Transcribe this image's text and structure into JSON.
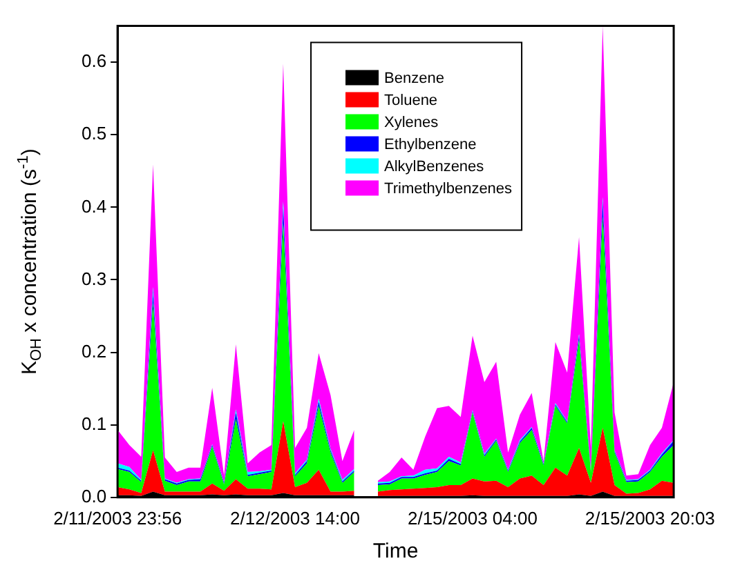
{
  "chart_data": {
    "type": "area",
    "stacked": true,
    "xlabel": "Time",
    "ylabel": "K$_{OH}$ x concentration (s$^{-1}$)",
    "categories": [
      "2/11/2003 23:56",
      null,
      null,
      null,
      null,
      null,
      null,
      null,
      null,
      null,
      null,
      null,
      null,
      null,
      null,
      "2/12/2003 14:00",
      null,
      null,
      null,
      null,
      null,
      null,
      null,
      null,
      null,
      null,
      null,
      null,
      null,
      null,
      "2/15/2003 04:00",
      null,
      null,
      null,
      null,
      null,
      null,
      null,
      null,
      null,
      null,
      null,
      null,
      null,
      null,
      "2/15/2003 20:03",
      null,
      null
    ],
    "ylim": [
      0,
      0.65
    ],
    "yticks": [
      {
        "value": 0,
        "label": "0.0"
      },
      0.1,
      0.2,
      0.3,
      0.4,
      0.5,
      0.6
    ],
    "grid": false,
    "legend": "top right",
    "series": [
      {
        "name": "Benzene",
        "color": "#000000",
        "values": [
          0.003,
          0.003,
          0.002,
          0.008,
          0.003,
          0.003,
          0.003,
          0.003,
          0.004,
          0.003,
          0.004,
          0.003,
          0.003,
          0.003,
          0.006,
          0.003,
          0.003,
          0.003,
          0.003,
          0.003,
          0.003,
          null,
          0.002,
          0.002,
          0.002,
          0.002,
          0.002,
          0.002,
          0.002,
          0.002,
          0.003,
          0.002,
          0.002,
          0.002,
          0.002,
          0.002,
          0.002,
          0.002,
          0.002,
          0.004,
          0.002,
          0.008,
          0.002,
          0.002,
          0.002,
          0.002,
          0.002,
          0.002
        ]
      },
      {
        "name": "Toluene",
        "color": "#ff0000",
        "values": [
          0.011,
          0.008,
          0.004,
          0.057,
          0.005,
          0.005,
          0.005,
          0.005,
          0.015,
          0.006,
          0.021,
          0.009,
          0.009,
          0.008,
          0.099,
          0.011,
          0.017,
          0.035,
          0.005,
          0.005,
          0.006,
          null,
          0.006,
          0.008,
          0.009,
          0.01,
          0.011,
          0.012,
          0.015,
          0.015,
          0.023,
          0.02,
          0.021,
          0.012,
          0.024,
          0.028,
          0.015,
          0.039,
          0.028,
          0.064,
          0.018,
          0.088,
          0.015,
          0.003,
          0.004,
          0.009,
          0.021,
          0.018
        ]
      },
      {
        "name": "Xylenes",
        "color": "#00ff00",
        "values": [
          0.025,
          0.024,
          0.015,
          0.203,
          0.015,
          0.009,
          0.014,
          0.014,
          0.051,
          0.009,
          0.083,
          0.017,
          0.02,
          0.024,
          0.273,
          0.015,
          0.027,
          0.088,
          0.054,
          0.012,
          0.026,
          null,
          0.009,
          0.008,
          0.015,
          0.014,
          0.018,
          0.021,
          0.033,
          0.027,
          0.091,
          0.034,
          0.055,
          0.021,
          0.049,
          0.063,
          0.027,
          0.085,
          0.072,
          0.149,
          0.015,
          0.291,
          0.045,
          0.016,
          0.016,
          0.024,
          0.033,
          0.052
        ]
      },
      {
        "name": "Ethylbenzene",
        "color": "#0000ff",
        "values": [
          0.002,
          0.002,
          0.002,
          0.014,
          0.002,
          0.002,
          0.002,
          0.003,
          0.002,
          0.002,
          0.009,
          0.002,
          0.002,
          0.002,
          0.021,
          0.002,
          0.003,
          0.006,
          0.003,
          0.002,
          0.002,
          null,
          0.002,
          0.002,
          0.002,
          0.002,
          0.002,
          0.002,
          0.003,
          0.002,
          0.002,
          0.002,
          0.002,
          0.002,
          0.002,
          0.003,
          0.002,
          0.002,
          0.002,
          0.006,
          0.002,
          0.021,
          0.002,
          0.002,
          0.002,
          0.002,
          0.003,
          0.006
        ]
      },
      {
        "name": "AlkylBenzenes",
        "color": "#00ffff",
        "values": [
          0.006,
          0.005,
          0.001,
          0.008,
          0.001,
          0.001,
          0.001,
          0.001,
          0.001,
          0.001,
          0.004,
          0.004,
          0.002,
          0.001,
          0.009,
          0.002,
          0.002,
          0.004,
          0.002,
          0.002,
          0.002,
          null,
          0.002,
          0.002,
          0.001,
          0.002,
          0.005,
          0.003,
          0.003,
          0.002,
          0.001,
          0.002,
          0.001,
          0.001,
          0.002,
          0.001,
          0.001,
          0.002,
          0.001,
          0.002,
          0.001,
          0.006,
          0.001,
          0.001,
          0.001,
          0.001,
          0.002,
          0.001
        ]
      },
      {
        "name": "Trimethylbenzenes",
        "color": "#ff00ff",
        "values": [
          0.046,
          0.03,
          0.032,
          0.169,
          0.029,
          0.015,
          0.016,
          0.015,
          0.078,
          0.009,
          0.09,
          0.012,
          0.026,
          0.034,
          0.19,
          0.035,
          0.044,
          0.063,
          0.074,
          0.026,
          0.054,
          null,
          0.002,
          0.013,
          0.026,
          0.008,
          0.046,
          0.083,
          0.07,
          0.063,
          0.103,
          0.099,
          0.106,
          0.024,
          0.035,
          0.047,
          0.003,
          0.084,
          0.067,
          0.134,
          0.03,
          0.236,
          0.052,
          0.006,
          0.007,
          0.034,
          0.035,
          0.08
        ]
      }
    ]
  }
}
